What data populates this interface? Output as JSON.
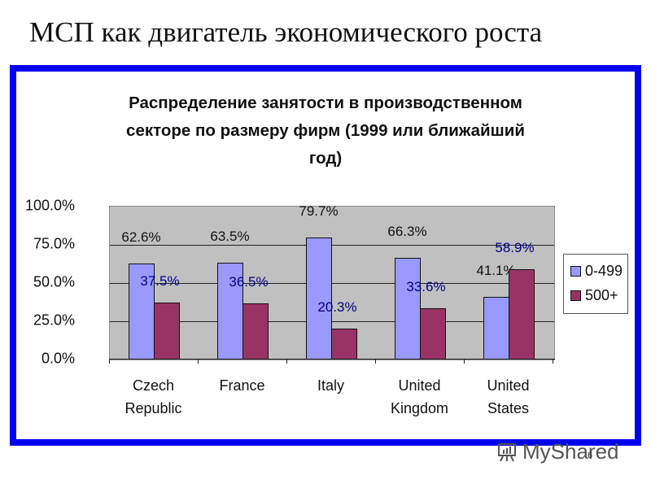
{
  "slide": {
    "title": "МСП как двигатель экономического роста",
    "page_number": "6",
    "watermark": "MyShared",
    "frame_color": "#0000f0"
  },
  "chart": {
    "title_lines": [
      "Распределение занятости в производственном",
      "секторе по размеру фирм (1999 или ближайший",
      "год)"
    ],
    "y_ticks": [
      "100.0%",
      "75.0%",
      "50.0%",
      "25.0%",
      "0.0%"
    ],
    "x_labels": [
      [
        "Czech",
        "Republic"
      ],
      [
        "France",
        ""
      ],
      [
        "Italy",
        ""
      ],
      [
        "United",
        "Kingdom"
      ],
      [
        "United",
        "States"
      ]
    ],
    "legend": [
      {
        "label": "0-499",
        "color": "#9999ff"
      },
      {
        "label": "500+",
        "color": "#993366"
      }
    ],
    "labels": {
      "s0": [
        "62.6%",
        "63.5%",
        "79.7%",
        "66.3%",
        "41.1%"
      ],
      "s1": [
        "37.5%",
        "36.5%",
        "20.3%",
        "33.6%",
        "58.9%"
      ]
    }
  },
  "chart_data": {
    "type": "bar",
    "title": "Распределение занятости в производственном секторе по размеру фирм (1999 или ближайший год)",
    "categories": [
      "Czech Republic",
      "France",
      "Italy",
      "United Kingdom",
      "United States"
    ],
    "series": [
      {
        "name": "0-499",
        "values": [
          62.6,
          63.5,
          79.7,
          66.3,
          41.1
        ],
        "color": "#9999ff"
      },
      {
        "name": "500+",
        "values": [
          37.5,
          36.5,
          20.3,
          33.6,
          58.9
        ],
        "color": "#993366"
      }
    ],
    "xlabel": "",
    "ylabel": "",
    "ylim": [
      0,
      100
    ],
    "y_tick_format": "0.0%",
    "grid": true,
    "legend_position": "right",
    "plot_background": "#c0c0c0"
  }
}
